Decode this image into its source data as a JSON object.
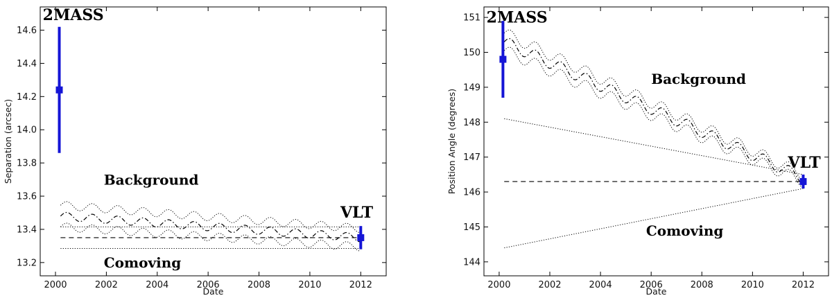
{
  "chart_data": [
    {
      "type": "scatter",
      "title": "",
      "xlabel": "Date",
      "ylabel": "Separation (arcsec)",
      "xlim": [
        1999.4,
        2013
      ],
      "ylim": [
        13.12,
        14.74
      ],
      "xticks": [
        2000,
        2002,
        2004,
        2006,
        2008,
        2010,
        2012
      ],
      "yticks": [
        13.2,
        13.4,
        13.6,
        13.8,
        14.0,
        14.2,
        14.4,
        14.6
      ],
      "ytick_labels": [
        "13.2",
        "13.4",
        "13.6",
        "13.8",
        "14.0",
        "14.2",
        "14.4",
        "14.6"
      ],
      "points": [
        {
          "name": "2MASS",
          "x": 2000.15,
          "y": 14.24,
          "yerr": 0.38,
          "xerr": 0.1
        },
        {
          "name": "VLT",
          "x": 2012.0,
          "y": 13.35,
          "yerr": 0.07,
          "xerr": 0.1
        }
      ],
      "models": {
        "comoving": {
          "x": [
            2000.2,
            2012.0
          ],
          "y": [
            13.35,
            13.35
          ],
          "upper": 13.415,
          "lower": 13.285
        },
        "background": {
          "x0": 2000.2,
          "x1": 2012.0,
          "y0": 13.48,
          "y1": 13.35,
          "spread0": 0.065,
          "spread1": 0.055,
          "amplitude": 0.025
        }
      },
      "annotations": [
        {
          "text": "2MASS",
          "x": 1999.5,
          "y": 14.66
        },
        {
          "text": "Background",
          "x": 2001.9,
          "y": 13.67
        },
        {
          "text": "VLT",
          "x": 2011.2,
          "y": 13.47
        },
        {
          "text": "Comoving",
          "x": 2001.9,
          "y": 13.17
        }
      ],
      "colors": {
        "data": "#1515d6",
        "models": "#000000"
      }
    },
    {
      "type": "scatter",
      "title": "",
      "xlabel": "Date",
      "ylabel": "Position Angle (degrees)",
      "xlim": [
        1999.4,
        2013
      ],
      "ylim": [
        143.6,
        151.3
      ],
      "xticks": [
        2000,
        2002,
        2004,
        2006,
        2008,
        2010,
        2012
      ],
      "yticks": [
        144,
        145,
        146,
        147,
        148,
        149,
        150,
        151
      ],
      "ytick_labels": [
        "144",
        "145",
        "146",
        "147",
        "148",
        "149",
        "150",
        "151"
      ],
      "points": [
        {
          "name": "2MASS",
          "x": 2000.15,
          "y": 149.8,
          "yerr": 1.1,
          "xerr": 0.1
        },
        {
          "name": "VLT",
          "x": 2012.0,
          "y": 146.3,
          "yerr": 0.2,
          "xerr": 0.1
        }
      ],
      "models": {
        "comoving": {
          "x": [
            2000.2,
            2012.0
          ],
          "y": [
            146.3,
            146.3
          ],
          "upper_start": 148.1,
          "lower_start": 144.4,
          "upper_end": 146.5,
          "lower_end": 146.1
        },
        "background": {
          "x0": 2000.2,
          "x1": 2012.0,
          "y0": 150.3,
          "y1": 146.4,
          "spread0": 0.25,
          "spread1": 0.1,
          "amplitude": 0.17
        }
      },
      "annotations": [
        {
          "text": "2MASS",
          "x": 1999.5,
          "y": 150.85
        },
        {
          "text": "Background",
          "x": 2006.0,
          "y": 149.1
        },
        {
          "text": "VLT",
          "x": 2011.4,
          "y": 146.7
        },
        {
          "text": "Comoving",
          "x": 2005.8,
          "y": 144.75
        }
      ],
      "colors": {
        "data": "#1515d6",
        "models": "#000000"
      }
    }
  ]
}
